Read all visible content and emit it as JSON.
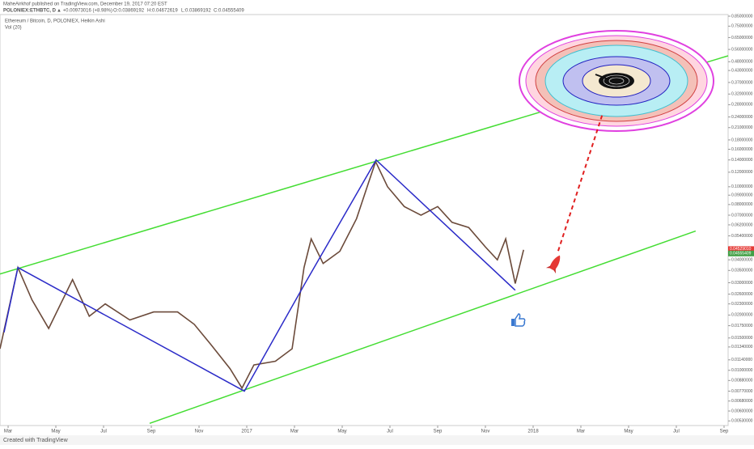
{
  "header": {
    "publisher": "MaheAirkhof published on TradingView.com, December 19, 2017 07:20 EST",
    "symbol": "POLONIEX:ETHBTC, D",
    "change": "▲ +0.00973016 (+8.98%)",
    "open": "O:0.03869192",
    "high": "H:0.04672619",
    "low": "L:0.03869192",
    "close": "C:0.04555409"
  },
  "chart_data": {
    "type": "line",
    "title": "Ethereum / Bitcoin, D, POLONIEX, Heikin Ashi",
    "subtitle": "Vol (20)",
    "log_scale": true,
    "grid": false,
    "xlim": [
      -0.34,
      30.17
    ],
    "ylim": [
      0.0049,
      0.96
    ],
    "xticks": [
      {
        "value": 0,
        "label": "Mar"
      },
      {
        "value": 2,
        "label": "May"
      },
      {
        "value": 4,
        "label": "Jul"
      },
      {
        "value": 6,
        "label": "Sep"
      },
      {
        "value": 8,
        "label": "Nov"
      },
      {
        "value": 10,
        "label": "2017"
      },
      {
        "value": 12,
        "label": "Mar"
      },
      {
        "value": 14,
        "label": "May"
      },
      {
        "value": 16,
        "label": "Jul"
      },
      {
        "value": 18,
        "label": "Sep"
      },
      {
        "value": 20,
        "label": "Nov"
      },
      {
        "value": 22,
        "label": "2018"
      },
      {
        "value": 24,
        "label": "Mar"
      },
      {
        "value": 26,
        "label": "May"
      },
      {
        "value": 28,
        "label": "Jul"
      },
      {
        "value": 30,
        "label": "Sep"
      }
    ],
    "yticks": [
      {
        "value": 0.85,
        "label": "0.85000000"
      },
      {
        "value": 0.75,
        "label": "0.75000000"
      },
      {
        "value": 0.65,
        "label": "0.65000000"
      },
      {
        "value": 0.56,
        "label": "0.56000000"
      },
      {
        "value": 0.48,
        "label": "0.48000000"
      },
      {
        "value": 0.43,
        "label": "0.43000000"
      },
      {
        "value": 0.37,
        "label": "0.37000000"
      },
      {
        "value": 0.32,
        "label": "0.32000000"
      },
      {
        "value": 0.28,
        "label": "0.28000000"
      },
      {
        "value": 0.24,
        "label": "0.24000000"
      },
      {
        "value": 0.21,
        "label": "0.21000000"
      },
      {
        "value": 0.18,
        "label": "0.18000000"
      },
      {
        "value": 0.16,
        "label": "0.16000000"
      },
      {
        "value": 0.14,
        "label": "0.14000000"
      },
      {
        "value": 0.12,
        "label": "0.12000000"
      },
      {
        "value": 0.1,
        "label": "0.10000000"
      },
      {
        "value": 0.09,
        "label": "0.09000000"
      },
      {
        "value": 0.08,
        "label": "0.08000000"
      },
      {
        "value": 0.07,
        "label": "0.07000000"
      },
      {
        "value": 0.062,
        "label": "0.06200000"
      },
      {
        "value": 0.054,
        "label": "0.05400000"
      },
      {
        "value": 0.04,
        "label": "0.04000000"
      },
      {
        "value": 0.035,
        "label": "0.03500000"
      },
      {
        "value": 0.03,
        "label": "0.03000000"
      },
      {
        "value": 0.026,
        "label": "0.02600000"
      },
      {
        "value": 0.023,
        "label": "0.02300000"
      },
      {
        "value": 0.02,
        "label": "0.02000000"
      },
      {
        "value": 0.0175,
        "label": "0.01750000"
      },
      {
        "value": 0.015,
        "label": "0.01500000"
      },
      {
        "value": 0.0134,
        "label": "0.01340000"
      },
      {
        "value": 0.0114,
        "label": "0.01140000"
      },
      {
        "value": 0.01,
        "label": "0.01000000"
      },
      {
        "value": 0.0088,
        "label": "0.00880000"
      },
      {
        "value": 0.0077,
        "label": "0.00770000"
      },
      {
        "value": 0.0068,
        "label": "0.00680000"
      },
      {
        "value": 0.006,
        "label": "0.00600000"
      },
      {
        "value": 0.0053,
        "label": "0.00530000"
      }
    ],
    "price_tags": [
      {
        "value": 0.0452901,
        "label": "0.04529010",
        "color": "#e53935"
      },
      {
        "value": 0.04555409,
        "label": "0.04555409",
        "color": "#43a047"
      }
    ],
    "series": [
      {
        "color": "#6b4a3a",
        "x": [
          -0.34,
          0.41,
          1.0,
          1.7,
          2.7,
          3.4,
          4.07,
          5.1,
          6.1,
          7.1,
          7.8,
          8.5,
          9.3,
          9.8,
          10.3,
          11.2,
          11.9,
          12.4,
          12.7,
          13.2,
          13.9,
          14.6,
          15.1,
          15.4,
          15.9,
          16.6,
          17.3,
          18.0,
          18.6,
          19.3,
          20.0,
          20.5,
          20.85,
          21.25,
          21.6
        ],
        "values": [
          0.0131,
          0.0363,
          0.0242,
          0.0169,
          0.0312,
          0.0197,
          0.023,
          0.0188,
          0.0208,
          0.0208,
          0.0178,
          0.0138,
          0.0102,
          0.008,
          0.0107,
          0.0112,
          0.0131,
          0.0363,
          0.052,
          0.0382,
          0.0445,
          0.067,
          0.105,
          0.137,
          0.1,
          0.078,
          0.07,
          0.078,
          0.064,
          0.06,
          0.047,
          0.04,
          0.052,
          0.0297,
          0.0453
        ]
      }
    ],
    "drawings": [
      {
        "color": "#44dd33",
        "width": 1.5,
        "dash": false,
        "x": [
          -0.34,
          30.17
        ],
        "values": [
          0.0335,
          0.517
        ]
      },
      {
        "color": "#44dd33",
        "width": 1.5,
        "dash": false,
        "x": [
          5.93,
          28.81
        ],
        "values": [
          0.00514,
          0.0574
        ]
      },
      {
        "color": "#2b2bc8",
        "width": 1.5,
        "dash": false,
        "x": [
          -0.17,
          0.41,
          9.9,
          12.47,
          15.42,
          21.25
        ],
        "values": [
          0.0161,
          0.0363,
          0.0077,
          0.0302,
          0.14,
          0.0273
        ]
      },
      {
        "color": "#e02020",
        "width": 2,
        "dash": true,
        "x": [
          23.05,
          24.92
        ],
        "values": [
          0.0447,
          0.252
        ]
      }
    ]
  },
  "footer": "Created with TradingView"
}
